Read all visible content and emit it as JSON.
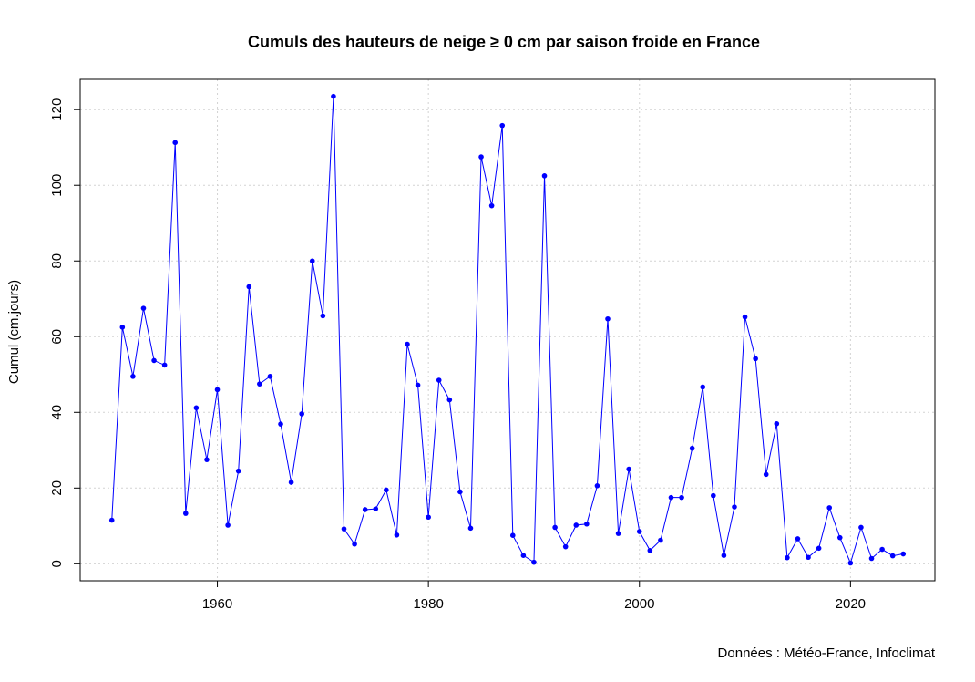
{
  "chart_data": {
    "type": "line",
    "title": "Cumuls des hauteurs de neige ≥ 0 cm par saison froide en France",
    "xlabel": "",
    "ylabel": "Cumul (cm.jours)",
    "source": "Données : Météo-France, Infoclimat",
    "xlim": [
      1947,
      2028
    ],
    "ylim": [
      -4.5,
      128
    ],
    "xticks": [
      1960,
      1980,
      2000,
      2020
    ],
    "yticks": [
      0,
      20,
      40,
      60,
      80,
      100,
      120
    ],
    "grid": true,
    "series": [
      {
        "color": "#0000ff",
        "x": [
          1950,
          1951,
          1952,
          1953,
          1954,
          1955,
          1956,
          1957,
          1958,
          1959,
          1960,
          1961,
          1962,
          1963,
          1964,
          1965,
          1966,
          1967,
          1968,
          1969,
          1970,
          1971,
          1972,
          1973,
          1974,
          1975,
          1976,
          1977,
          1978,
          1979,
          1980,
          1981,
          1982,
          1983,
          1984,
          1985,
          1986,
          1987,
          1988,
          1989,
          1990,
          1991,
          1992,
          1993,
          1994,
          1995,
          1996,
          1997,
          1998,
          1999,
          2000,
          2001,
          2002,
          2003,
          2004,
          2005,
          2006,
          2007,
          2008,
          2009,
          2010,
          2011,
          2012,
          2013,
          2014,
          2015,
          2016,
          2017,
          2018,
          2019,
          2020,
          2021,
          2022,
          2023,
          2024,
          2025
        ],
        "y": [
          11.5,
          62.5,
          49.5,
          67.5,
          53.7,
          52.5,
          111.3,
          13.3,
          41.2,
          27.5,
          46,
          10.2,
          24.5,
          73.2,
          47.5,
          49.5,
          36.9,
          21.5,
          39.6,
          80,
          65.5,
          123.5,
          9.2,
          5.2,
          14.3,
          14.5,
          19.5,
          7.6,
          58,
          47.2,
          12.3,
          48.5,
          43.3,
          19,
          9.4,
          107.5,
          94.6,
          115.8,
          7.5,
          2.2,
          0.4,
          102.5,
          9.6,
          4.5,
          10.2,
          10.5,
          20.6,
          64.7,
          8,
          25,
          8.5,
          3.5,
          6.2,
          17.5,
          17.5,
          30.5,
          46.7,
          18,
          2.2,
          15,
          65.2,
          54.2,
          23.6,
          37,
          1.6,
          6.6,
          1.7,
          4.1,
          14.8,
          6.9,
          0.2,
          9.6,
          1.4,
          3.8,
          2.1,
          2.6
        ]
      }
    ]
  }
}
